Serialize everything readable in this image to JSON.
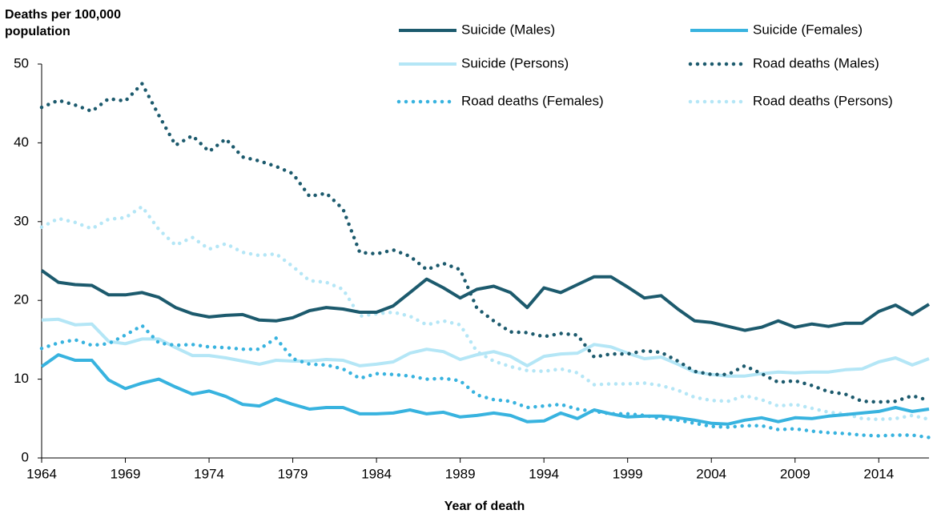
{
  "chart_data": {
    "type": "line",
    "y_label": "Deaths per 100,000 population",
    "x_label": "Year of death",
    "x": [
      1964,
      1965,
      1966,
      1967,
      1968,
      1969,
      1970,
      1971,
      1972,
      1973,
      1974,
      1975,
      1976,
      1977,
      1978,
      1979,
      1980,
      1981,
      1982,
      1983,
      1984,
      1985,
      1986,
      1987,
      1988,
      1989,
      1990,
      1991,
      1992,
      1993,
      1994,
      1995,
      1996,
      1997,
      1998,
      1999,
      2000,
      2001,
      2002,
      2003,
      2004,
      2005,
      2006,
      2007,
      2008,
      2009,
      2010,
      2011,
      2012,
      2013,
      2014,
      2015,
      2016,
      2017
    ],
    "xlim": [
      1964,
      2017
    ],
    "xticks": [
      1964,
      1969,
      1974,
      1979,
      1984,
      1989,
      1994,
      1999,
      2004,
      2009,
      2014
    ],
    "ylim": [
      0,
      50
    ],
    "yticks": [
      0,
      10,
      20,
      30,
      40,
      50
    ],
    "grid": false,
    "series": [
      {
        "name": "Suicide (Males)",
        "color": "#1c5a6d",
        "style": "solid",
        "values": [
          23.8,
          22.3,
          22.0,
          21.9,
          20.7,
          20.7,
          21.0,
          20.4,
          19.1,
          18.3,
          17.9,
          18.1,
          18.2,
          17.5,
          17.4,
          17.8,
          18.7,
          19.1,
          18.9,
          18.5,
          18.5,
          19.3,
          21.0,
          22.7,
          21.6,
          20.3,
          21.4,
          21.8,
          21.0,
          19.1,
          21.6,
          21.0,
          22.0,
          23.0,
          23.0,
          21.7,
          20.3,
          20.6,
          18.9,
          17.4,
          17.2,
          16.7,
          16.2,
          16.6,
          17.4,
          16.6,
          17.0,
          16.7,
          17.1,
          17.1,
          18.6,
          19.4,
          18.2,
          19.5
        ]
      },
      {
        "name": "Suicide (Females)",
        "color": "#38b3df",
        "style": "solid",
        "values": [
          11.6,
          13.1,
          12.4,
          12.4,
          9.9,
          8.8,
          9.5,
          10.0,
          9.0,
          8.1,
          8.5,
          7.8,
          6.8,
          6.6,
          7.5,
          6.8,
          6.2,
          6.4,
          6.4,
          5.6,
          5.6,
          5.7,
          6.1,
          5.6,
          5.8,
          5.2,
          5.4,
          5.7,
          5.4,
          4.6,
          4.7,
          5.7,
          5.0,
          6.1,
          5.6,
          5.2,
          5.3,
          5.3,
          5.1,
          4.8,
          4.4,
          4.3,
          4.8,
          5.1,
          4.6,
          5.1,
          5.0,
          5.3,
          5.5,
          5.7,
          5.9,
          6.4,
          5.9,
          6.2
        ]
      },
      {
        "name": "Suicide (Persons)",
        "color": "#b4e6f6",
        "style": "solid",
        "values": [
          17.5,
          17.6,
          16.9,
          17.0,
          14.8,
          14.5,
          15.1,
          15.1,
          14.0,
          13.0,
          13.0,
          12.7,
          12.3,
          11.9,
          12.4,
          12.3,
          12.3,
          12.5,
          12.4,
          11.7,
          11.9,
          12.2,
          13.3,
          13.8,
          13.5,
          12.5,
          13.1,
          13.5,
          12.9,
          11.7,
          12.9,
          13.2,
          13.3,
          14.4,
          14.1,
          13.3,
          12.6,
          12.8,
          11.9,
          10.9,
          10.6,
          10.4,
          10.4,
          10.7,
          10.9,
          10.8,
          10.9,
          10.9,
          11.2,
          11.3,
          12.2,
          12.7,
          11.8,
          12.6
        ]
      },
      {
        "name": "Road deaths (Males)",
        "color": "#1c5a6d",
        "style": "dotted",
        "values": [
          44.5,
          45.4,
          44.8,
          44.0,
          45.6,
          45.3,
          47.5,
          43.5,
          39.7,
          40.9,
          38.9,
          40.5,
          38.2,
          37.7,
          37.0,
          36.1,
          33.2,
          33.6,
          31.6,
          26.1,
          25.9,
          26.4,
          25.6,
          23.9,
          24.7,
          23.9,
          19.0,
          17.4,
          16.0,
          15.9,
          15.4,
          15.8,
          15.6,
          12.8,
          13.2,
          13.2,
          13.6,
          13.4,
          12.3,
          11.0,
          10.6,
          10.6,
          11.7,
          10.7,
          9.6,
          9.8,
          9.2,
          8.4,
          8.1,
          7.2,
          7.1,
          7.2,
          7.9,
          7.3
        ]
      },
      {
        "name": "Road deaths (Females)",
        "color": "#38b3df",
        "style": "dotted",
        "values": [
          13.9,
          14.6,
          15.0,
          14.3,
          14.5,
          15.6,
          16.8,
          14.6,
          14.3,
          14.4,
          14.1,
          14.0,
          13.8,
          13.8,
          15.2,
          12.6,
          11.9,
          11.8,
          11.3,
          10.1,
          10.7,
          10.6,
          10.4,
          10.0,
          10.1,
          9.8,
          8.0,
          7.4,
          7.2,
          6.4,
          6.6,
          6.8,
          6.2,
          5.9,
          5.6,
          5.6,
          5.4,
          5.0,
          4.8,
          4.4,
          4.0,
          3.9,
          4.1,
          4.1,
          3.6,
          3.7,
          3.4,
          3.2,
          3.1,
          2.9,
          2.8,
          2.9,
          2.9,
          2.6
        ]
      },
      {
        "name": "Road deaths (Persons)",
        "color": "#b4e6f6",
        "style": "dotted",
        "values": [
          29.3,
          30.4,
          29.9,
          29.1,
          30.3,
          30.5,
          31.9,
          29.0,
          27.0,
          28.0,
          26.5,
          27.2,
          26.1,
          25.7,
          25.9,
          24.3,
          22.5,
          22.3,
          21.4,
          18.0,
          18.3,
          18.5,
          18.0,
          16.9,
          17.4,
          16.9,
          13.5,
          12.3,
          11.6,
          11.1,
          11.0,
          11.3,
          10.8,
          9.3,
          9.4,
          9.4,
          9.5,
          9.2,
          8.6,
          7.7,
          7.3,
          7.2,
          7.9,
          7.4,
          6.6,
          6.8,
          6.3,
          5.8,
          5.6,
          5.0,
          4.9,
          5.0,
          5.4,
          4.9
        ]
      }
    ]
  }
}
